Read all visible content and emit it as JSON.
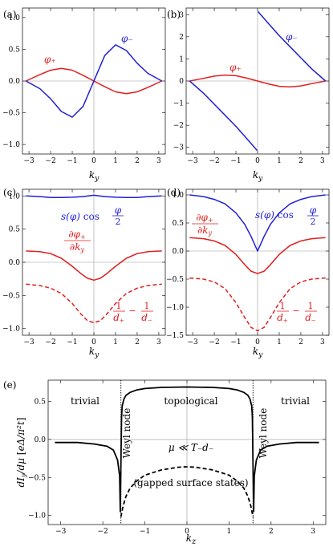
{
  "chart_data": [
    {
      "panel": "a",
      "label": "(a)",
      "type": "line",
      "xlabel": "k_y",
      "xlim": [
        -3.3,
        3.3
      ],
      "ylim": [
        -1.15,
        1.15
      ],
      "xticks": [
        -3,
        -2,
        -1,
        0,
        1,
        2,
        3
      ],
      "yticks": [
        "1.0",
        "0.5",
        "0.0",
        "-0.5",
        "-1.0"
      ],
      "series": [
        {
          "name": "φ₊",
          "color": "#e21f1f",
          "x": [
            -3.14,
            -2.5,
            -2.0,
            -1.5,
            -1.0,
            -0.5,
            0,
            0.5,
            1.0,
            1.5,
            2.0,
            2.5,
            3.14
          ],
          "y": [
            0,
            0.1,
            0.17,
            0.2,
            0.17,
            0.09,
            0,
            -0.09,
            -0.17,
            -0.2,
            -0.17,
            -0.1,
            0
          ]
        },
        {
          "name": "φ₋",
          "color": "#1f1fd6",
          "x": [
            -3.14,
            -2.5,
            -2.0,
            -1.5,
            -1.0,
            -0.5,
            0,
            0.5,
            1.0,
            1.5,
            2.0,
            2.5,
            3.14
          ],
          "y": [
            0,
            -0.12,
            -0.28,
            -0.48,
            -0.57,
            -0.4,
            0,
            0.4,
            0.57,
            0.48,
            0.28,
            0.12,
            0
          ]
        }
      ]
    },
    {
      "panel": "b",
      "label": "(b)",
      "type": "line",
      "xlabel": "k_y",
      "xlim": [
        -3.3,
        3.3
      ],
      "ylim": [
        -3.3,
        3.3
      ],
      "xticks": [
        -3,
        -2,
        -1,
        0,
        1,
        2,
        3
      ],
      "yticks": [
        "3",
        "2",
        "1",
        "0",
        "-1",
        "-2",
        "-3"
      ],
      "series": [
        {
          "name": "φ₊",
          "color": "#e21f1f",
          "x": [
            -3.14,
            -2.5,
            -2.0,
            -1.5,
            -1.0,
            -0.5,
            0,
            0.5,
            1.0,
            1.5,
            2.0,
            2.5,
            3.14
          ],
          "y": [
            0,
            0.12,
            0.22,
            0.27,
            0.24,
            0.13,
            0,
            -0.13,
            -0.24,
            -0.27,
            -0.22,
            -0.12,
            0
          ]
        },
        {
          "name": "φ₋",
          "color": "#1f1fd6",
          "x": [
            -3.14,
            -2.5,
            -2.0,
            -1.5,
            -1.0,
            -0.5,
            -0.02
          ],
          "y": [
            0,
            -0.55,
            -1.05,
            -1.55,
            -2.05,
            -2.6,
            -3.14
          ]
        },
        {
          "name": "φ₋",
          "color": "#1f1fd6",
          "x": [
            0.02,
            0.5,
            1.0,
            1.5,
            2.0,
            2.5,
            3.14
          ],
          "y": [
            3.14,
            2.6,
            2.05,
            1.55,
            1.05,
            0.55,
            0
          ]
        }
      ]
    },
    {
      "panel": "c",
      "label": "(c)",
      "type": "line",
      "xlabel": "k_y",
      "xlim": [
        -3.3,
        3.3
      ],
      "ylim": [
        -1.1,
        1.1
      ],
      "xticks": [
        -3,
        -2,
        -1,
        0,
        1,
        2,
        3
      ],
      "yticks": [
        "1.0",
        "0.5",
        "0.0",
        "-0.5",
        "-1.0"
      ],
      "series": [
        {
          "name": "s(φ) cos φ/2",
          "color": "#1f1fd6",
          "dash": false,
          "x": [
            -3.14,
            -2.5,
            -2.0,
            -1.5,
            -1.0,
            -0.5,
            -0.25,
            0,
            0.25,
            0.5,
            1.0,
            1.5,
            2.0,
            2.5,
            3.14
          ],
          "y": [
            1.0,
            0.99,
            0.975,
            0.975,
            0.98,
            0.99,
            1.0,
            1.01,
            1.0,
            0.99,
            0.98,
            0.975,
            0.975,
            0.99,
            1.0
          ]
        },
        {
          "name": "∂φ₊/∂k_y",
          "color": "#e21f1f",
          "dash": false,
          "x": [
            -3.14,
            -2.5,
            -2.0,
            -1.5,
            -1.0,
            -0.6,
            -0.3,
            0,
            0.3,
            0.6,
            1.0,
            1.5,
            2.0,
            2.5,
            3.14
          ],
          "y": [
            0.17,
            0.16,
            0.13,
            0.06,
            -0.06,
            -0.17,
            -0.24,
            -0.27,
            -0.24,
            -0.17,
            -0.06,
            0.06,
            0.13,
            0.16,
            0.17
          ]
        },
        {
          "name": "1/d₊ − 1/d₋",
          "color": "#e21f1f",
          "dash": true,
          "x": [
            -3.14,
            -2.5,
            -2.0,
            -1.5,
            -1.0,
            -0.6,
            -0.3,
            0,
            0.3,
            0.6,
            1.0,
            1.5,
            2.0,
            2.5,
            3.14
          ],
          "y": [
            -0.33,
            -0.35,
            -0.39,
            -0.47,
            -0.62,
            -0.78,
            -0.88,
            -0.91,
            -0.88,
            -0.78,
            -0.62,
            -0.47,
            -0.39,
            -0.35,
            -0.33
          ]
        }
      ]
    },
    {
      "panel": "d",
      "label": "(d)",
      "type": "line",
      "xlabel": "k_y",
      "xlim": [
        -3.3,
        3.3
      ],
      "ylim": [
        -1.5,
        1.1
      ],
      "xticks": [
        -3,
        -2,
        -1,
        0,
        1,
        2,
        3
      ],
      "yticks": [
        "1.0",
        "0.5",
        "0.0",
        "-0.5",
        "-1.0",
        "-1.5"
      ],
      "series": [
        {
          "name": "s(φ) cos φ/2",
          "color": "#1f1fd6",
          "dash": false,
          "x": [
            -3.14,
            -2.5,
            -2.0,
            -1.5,
            -1.0,
            -0.6,
            -0.3,
            0,
            0.3,
            0.6,
            1.0,
            1.5,
            2.0,
            2.5,
            3.14
          ],
          "y": [
            1.0,
            0.97,
            0.92,
            0.84,
            0.68,
            0.48,
            0.26,
            0.0,
            0.26,
            0.48,
            0.68,
            0.84,
            0.92,
            0.97,
            1.0
          ]
        },
        {
          "name": "∂φ₊/∂k_y",
          "color": "#e21f1f",
          "dash": false,
          "x": [
            -3.14,
            -2.5,
            -2.0,
            -1.5,
            -1.0,
            -0.6,
            -0.3,
            0,
            0.3,
            0.6,
            1.0,
            1.5,
            2.0,
            2.5,
            3.14
          ],
          "y": [
            0.24,
            0.22,
            0.18,
            0.1,
            -0.06,
            -0.24,
            -0.36,
            -0.4,
            -0.36,
            -0.24,
            -0.06,
            0.1,
            0.18,
            0.22,
            0.24
          ]
        },
        {
          "name": "1/d₊ − 1/d₋",
          "color": "#e21f1f",
          "dash": true,
          "x": [
            -3.14,
            -2.5,
            -2.0,
            -1.5,
            -1.0,
            -0.6,
            -0.3,
            0,
            0.3,
            0.6,
            1.0,
            1.5,
            2.0,
            2.5,
            3.14
          ],
          "y": [
            -0.48,
            -0.5,
            -0.55,
            -0.67,
            -0.92,
            -1.18,
            -1.36,
            -1.42,
            -1.36,
            -1.18,
            -0.92,
            -0.67,
            -0.55,
            -0.5,
            -0.48
          ]
        }
      ]
    },
    {
      "panel": "e",
      "label": "(e)",
      "type": "line",
      "xlabel": "k_z",
      "ylabel": "dI_y/dμ [eΔ/π²t]",
      "xlim": [
        -3.3,
        3.3
      ],
      "ylim": [
        -1.12,
        0.78
      ],
      "xticks": [
        -3,
        -2,
        -1,
        0,
        1,
        2,
        3
      ],
      "yticks": [
        "0.5",
        "0.0",
        "-0.5",
        "-1.0"
      ],
      "weyl_nodes": [
        -1.57,
        1.57
      ],
      "series": [
        {
          "name": "solid",
          "color": "#000000",
          "dash": false,
          "x": [
            -3.14,
            -2.6,
            -2.2,
            -1.9,
            -1.75,
            -1.65,
            -1.6,
            -1.585,
            -1.555,
            -1.54,
            -1.5,
            -1.45,
            -1.35,
            -1.2,
            -1.0,
            -0.6,
            0,
            0.6,
            1.0,
            1.2,
            1.35,
            1.45,
            1.5,
            1.54,
            1.555,
            1.585,
            1.6,
            1.65,
            1.75,
            1.9,
            2.2,
            2.6,
            3.14
          ],
          "y": [
            -0.04,
            -0.04,
            -0.06,
            -0.09,
            -0.14,
            -0.27,
            -0.48,
            -0.95,
            0.3,
            0.44,
            0.53,
            0.58,
            0.62,
            0.65,
            0.67,
            0.685,
            0.69,
            0.685,
            0.67,
            0.65,
            0.62,
            0.58,
            0.53,
            0.44,
            0.3,
            -0.95,
            -0.48,
            -0.27,
            -0.14,
            -0.09,
            -0.06,
            -0.04,
            -0.04
          ]
        },
        {
          "name": "gapped surface states",
          "color": "#000000",
          "dash": true,
          "x": [
            -1.57,
            -1.52,
            -1.45,
            -1.35,
            -1.2,
            -1.0,
            -0.6,
            -0.2,
            0,
            0.2,
            0.6,
            1.0,
            1.2,
            1.35,
            1.45,
            1.52,
            1.57
          ],
          "y": [
            -1.02,
            -0.88,
            -0.75,
            -0.64,
            -0.55,
            -0.47,
            -0.4,
            -0.365,
            -0.36,
            -0.365,
            -0.4,
            -0.47,
            -0.55,
            -0.64,
            -0.75,
            -0.88,
            -1.02
          ]
        }
      ]
    }
  ],
  "annotations": {
    "a_phi_plus": "φ₊",
    "a_phi_minus": "φ₋",
    "b_phi_plus": "φ₊",
    "b_phi_minus": "φ₋",
    "trivial_left": "trivial",
    "trivial_right": "trivial",
    "topological": "topological",
    "weyl_left": "Weyl node",
    "weyl_right": "Weyl node",
    "mu_condition": "μ ≪ T₋d₋",
    "gapped": "(gapped surface states)"
  }
}
